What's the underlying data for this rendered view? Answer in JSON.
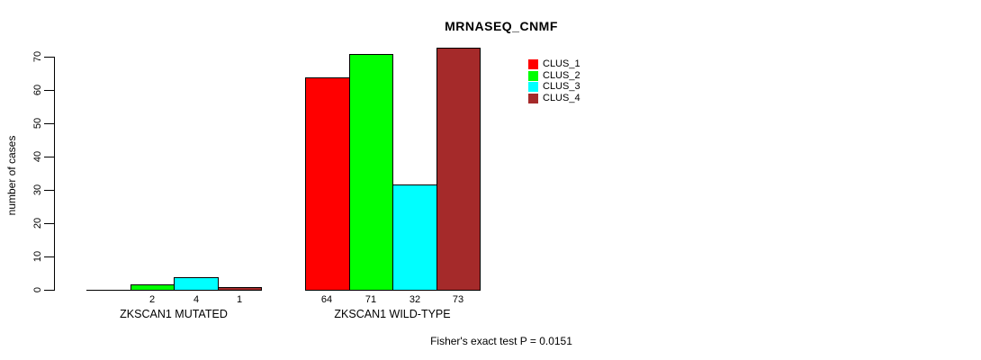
{
  "chart_data": {
    "type": "bar",
    "title": "MRNASEQ_CNMF",
    "ylabel": "number of cases",
    "xlabel": "",
    "ylim": [
      0,
      70
    ],
    "yticks": [
      0,
      10,
      20,
      30,
      40,
      50,
      60,
      70
    ],
    "grid": false,
    "legend_position": "top-right",
    "categories": [
      "ZKSCAN1 MUTATED",
      "ZKSCAN1 WILD-TYPE"
    ],
    "series": [
      {
        "name": "CLUS_1",
        "color": "#FF0000",
        "values": [
          0,
          64
        ]
      },
      {
        "name": "CLUS_2",
        "color": "#00FF00",
        "values": [
          2,
          71
        ]
      },
      {
        "name": "CLUS_3",
        "color": "#00FFFF",
        "values": [
          4,
          32
        ]
      },
      {
        "name": "CLUS_4",
        "color": "#A52A2A",
        "values": [
          1,
          73
        ]
      }
    ],
    "groups": [
      {
        "label": "ZKSCAN1 MUTATED",
        "value_labels": [
          "",
          "2",
          "4",
          "1"
        ]
      },
      {
        "label": "ZKSCAN1 WILD-TYPE",
        "value_labels": [
          "64",
          "71",
          "32",
          "73"
        ]
      }
    ],
    "annotation": "Fisher's exact test P = 0.0151"
  }
}
